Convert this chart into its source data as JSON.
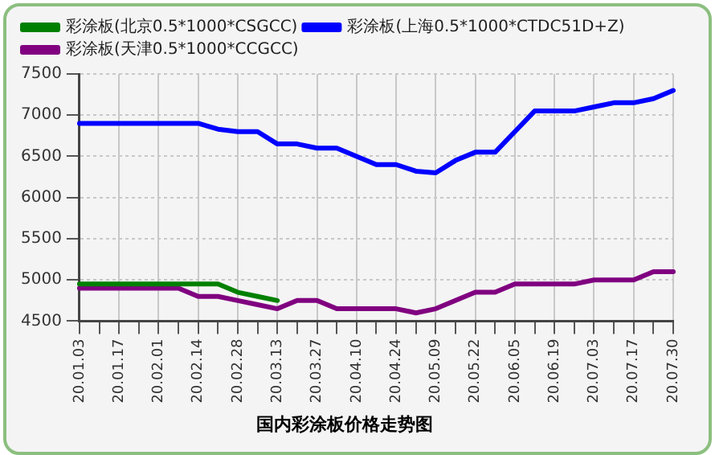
{
  "chart_data": {
    "type": "line",
    "title": "国内彩涂板价格走势图",
    "categories": [
      "20.01.03",
      null,
      "20.01.17",
      null,
      "20.02.01",
      null,
      "20.02.14",
      null,
      "20.02.28",
      null,
      "20.03.13",
      null,
      "20.03.27",
      null,
      "20.04.10",
      null,
      "20.04.24",
      null,
      "20.05.09",
      null,
      "20.05.22",
      null,
      "20.06.05",
      null,
      "20.06.19",
      null,
      "20.07.03",
      null,
      "20.07.17",
      null,
      "20.07.30"
    ],
    "series": [
      {
        "name": "彩涂板(北京0.5*1000*CSGCC)",
        "color": "#008000",
        "values": [
          4950,
          4950,
          4950,
          4950,
          4950,
          4950,
          4950,
          4950,
          4850,
          4800,
          4750,
          null,
          null,
          null,
          null,
          null,
          null,
          null,
          null,
          null,
          null,
          null,
          null,
          null,
          null,
          null,
          null,
          null,
          null,
          null,
          null
        ]
      },
      {
        "name": "彩涂板(上海0.5*1000*CTDC51D+Z)",
        "color": "#0000ff",
        "values": [
          6900,
          6900,
          6900,
          6900,
          6900,
          6900,
          6900,
          6830,
          6800,
          6800,
          6650,
          6650,
          6600,
          6600,
          6500,
          6400,
          6400,
          6320,
          6300,
          6450,
          6550,
          6550,
          6800,
          7050,
          7050,
          7050,
          7100,
          7150,
          7150,
          7200,
          7300
        ]
      },
      {
        "name": "彩涂板(天津0.5*1000*CCGCC)",
        "color": "#800080",
        "values": [
          4900,
          4900,
          4900,
          4900,
          4900,
          4900,
          4800,
          4800,
          4750,
          4700,
          4650,
          4750,
          4750,
          4650,
          4650,
          4650,
          4650,
          4600,
          4650,
          4750,
          4850,
          4850,
          4950,
          4950,
          4950,
          4950,
          5000,
          5000,
          5000,
          5100,
          5100
        ]
      }
    ],
    "ylim": [
      4500,
      7500
    ],
    "yticks": [
      4500,
      5000,
      5500,
      6000,
      6500,
      7000,
      7500
    ],
    "grid": true,
    "legend": "top",
    "marker": "none",
    "line_style": "solid"
  }
}
